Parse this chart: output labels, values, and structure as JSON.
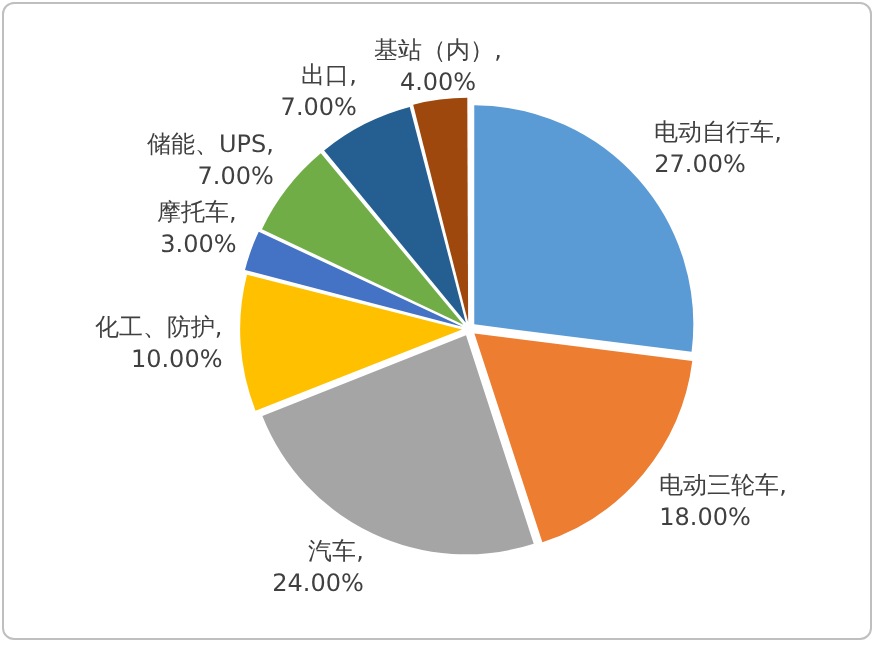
{
  "chart_data": {
    "type": "pie",
    "categories": [
      "电动自行车",
      "电动三轮车",
      "汽车",
      "化工、防护",
      "摩托车",
      "储能、UPS",
      "出口",
      "基站（内）"
    ],
    "values": [
      27,
      18,
      24,
      10,
      3,
      7,
      7,
      4
    ],
    "colors": [
      "#5b9bd5",
      "#ed7d31",
      "#a5a5a5",
      "#ffc000",
      "#4472c4",
      "#70ad47",
      "#255e91",
      "#9e480e"
    ],
    "value_labels": [
      ", 27.00%",
      ", 18.00%",
      ", 24.00%",
      ", 10.00%",
      ", 3.00%",
      ", 7.00%",
      ", 7.00%",
      ", 4.00%"
    ],
    "legend": false
  }
}
